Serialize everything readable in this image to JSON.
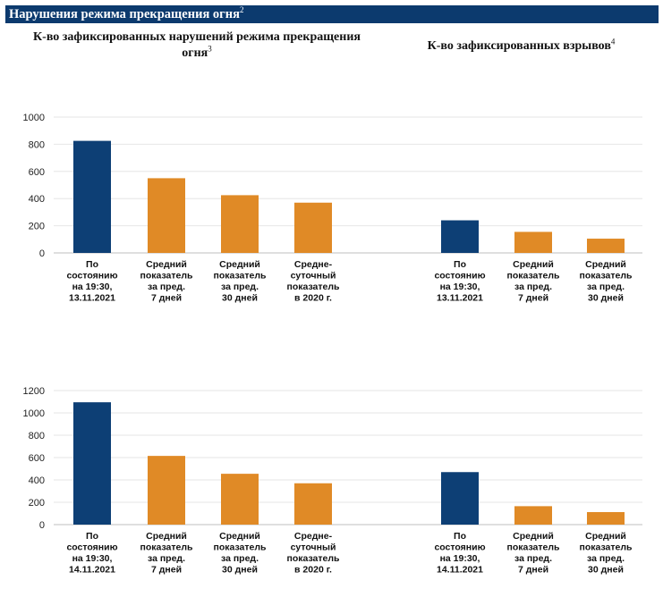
{
  "header": {
    "title": "Нарушения режима прекращения огня",
    "title_sup": "2"
  },
  "subtitles": {
    "left": "К-во зафиксированных нарушений режима прекращения огня",
    "left_sup": "3",
    "right": "К-во зафиксированных взрывов",
    "right_sup": "4"
  },
  "colors": {
    "current": "#0d3f75",
    "average": "#e08a26",
    "banner": "#0c3a6e"
  },
  "chart_data": [
    {
      "type": "bar",
      "title": "",
      "ylim": [
        0,
        1000
      ],
      "yticks": [
        0,
        200,
        400,
        600,
        800,
        1000
      ],
      "left_group": {
        "categories": [
          [
            "По",
            "состоянию",
            "на 19:30,",
            "13.11.2021"
          ],
          [
            "Средний",
            "показатель",
            "за пред.",
            "7 дней"
          ],
          [
            "Средний",
            "показатель",
            "за пред.",
            "30 дней"
          ],
          [
            "Средне-",
            "суточный",
            "показатель",
            "в 2020 г."
          ]
        ],
        "values": [
          825,
          550,
          425,
          370
        ]
      },
      "right_group": {
        "categories": [
          [
            "По",
            "состоянию",
            "на 19:30,",
            "13.11.2021"
          ],
          [
            "Средний",
            "показатель",
            "за пред.",
            "7 дней"
          ],
          [
            "Средний",
            "показатель",
            "за пред.",
            "30 дней"
          ]
        ],
        "values": [
          240,
          155,
          105
        ]
      }
    },
    {
      "type": "bar",
      "title": "",
      "ylim": [
        0,
        1200
      ],
      "yticks": [
        0,
        200,
        400,
        600,
        800,
        1000,
        1200
      ],
      "left_group": {
        "categories": [
          [
            "По",
            "состоянию",
            "на 19:30,",
            "14.11.2021"
          ],
          [
            "Средний",
            "показатель",
            "за пред.",
            "7 дней"
          ],
          [
            "Средний",
            "показатель",
            "за пред.",
            "30 дней"
          ],
          [
            "Средне-",
            "суточный",
            "показатель",
            "в 2020 г."
          ]
        ],
        "values": [
          1095,
          615,
          455,
          370
        ]
      },
      "right_group": {
        "categories": [
          [
            "По",
            "состоянию",
            "на 19:30,",
            "14.11.2021"
          ],
          [
            "Средний",
            "показатель",
            "за пред.",
            "7 дней"
          ],
          [
            "Средний",
            "показатель",
            "за пред.",
            "30 дней"
          ]
        ],
        "values": [
          470,
          165,
          112
        ]
      }
    }
  ]
}
